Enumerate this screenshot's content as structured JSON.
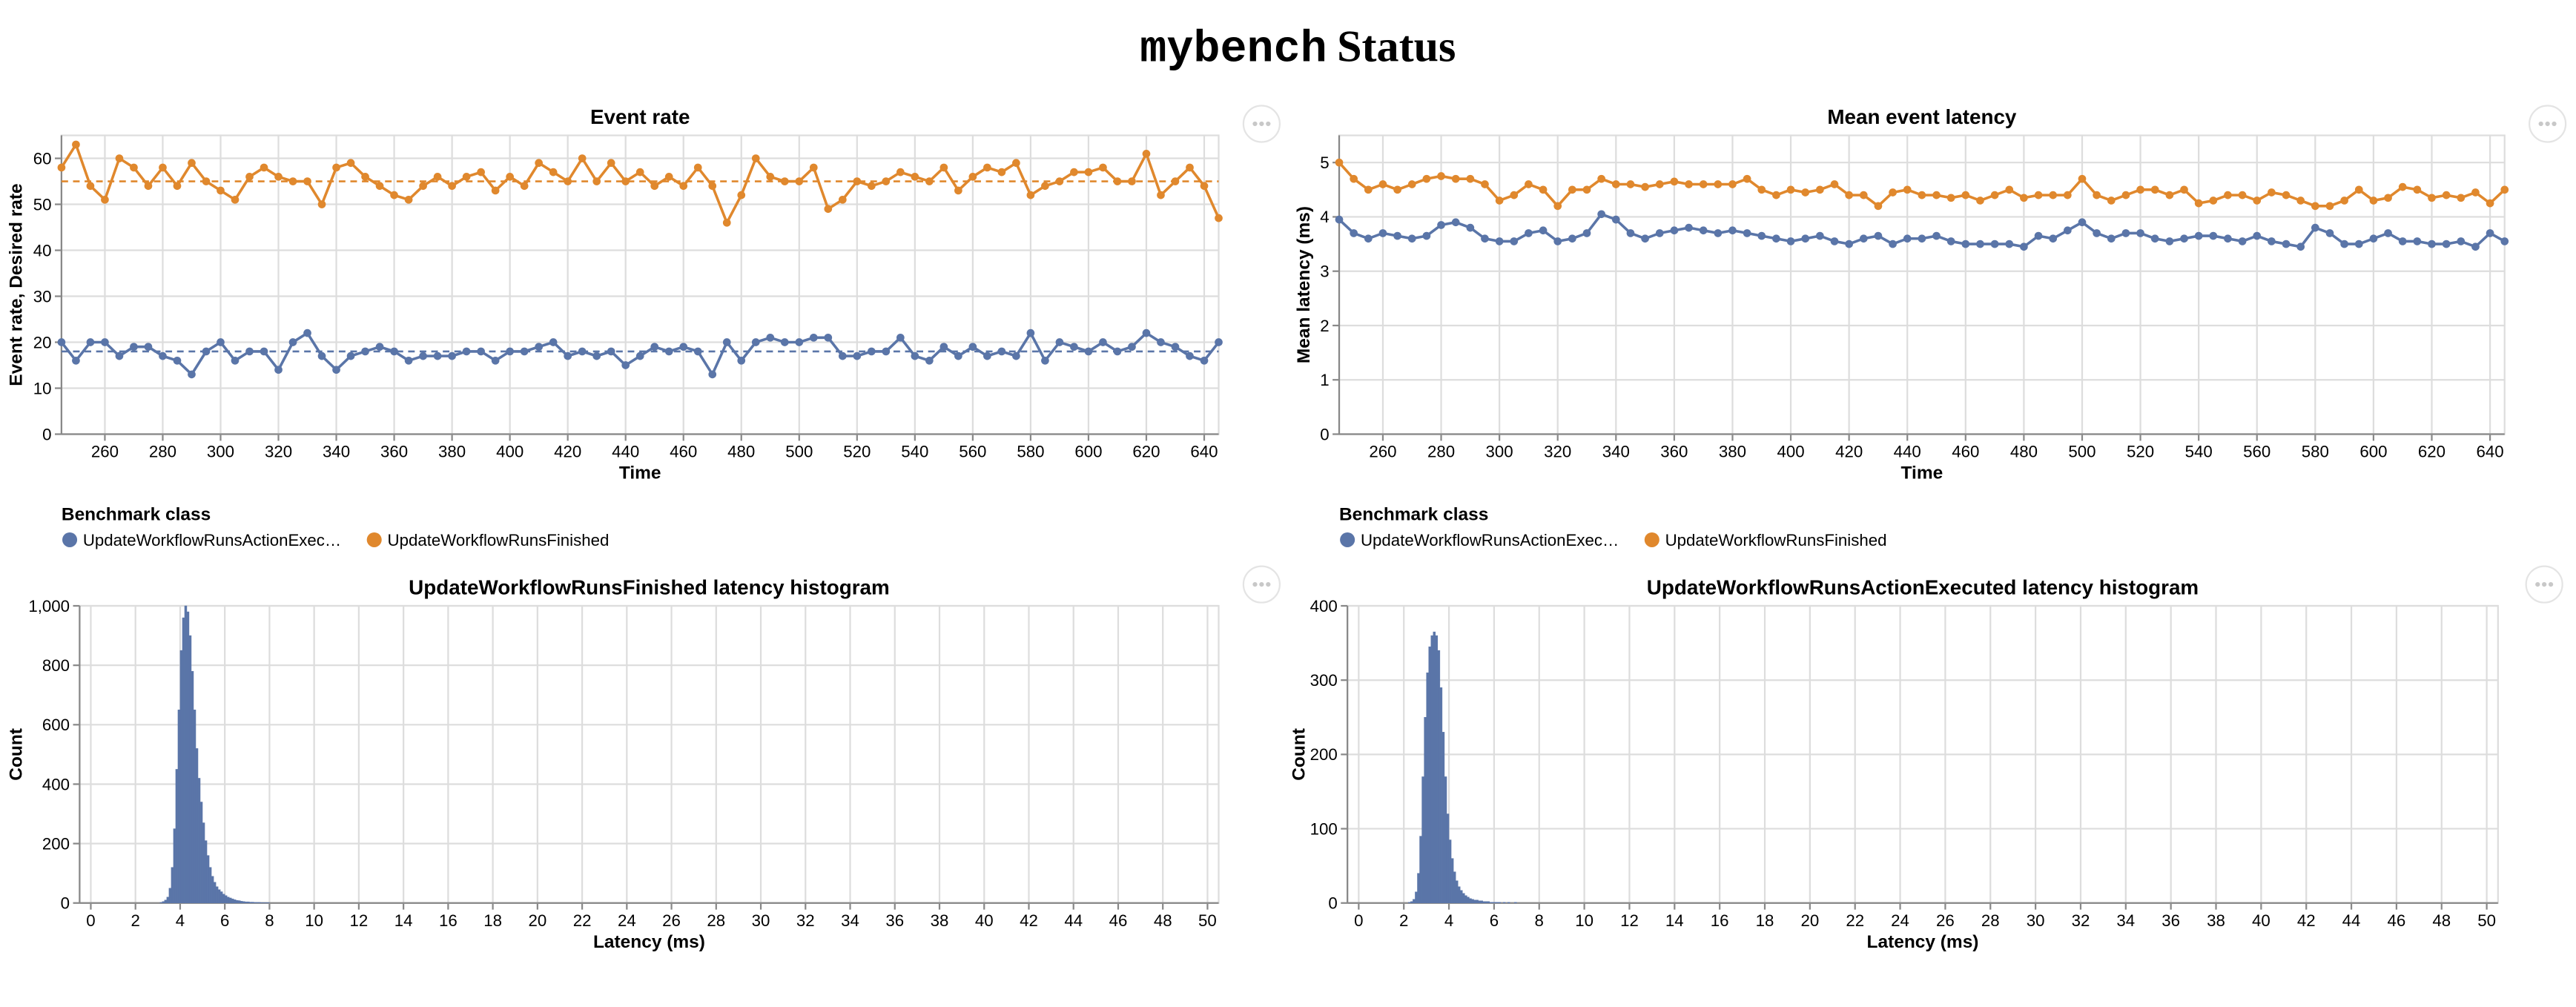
{
  "title_code": "mybench",
  "title_text": "Status",
  "chart_data": [
    {
      "type": "line",
      "title": "Event rate",
      "x_label": "Time",
      "y_label": "Event rate, Desired rate",
      "x": [
        245,
        250,
        255,
        260,
        265,
        270,
        275,
        280,
        285,
        290,
        295,
        300,
        305,
        310,
        315,
        320,
        325,
        330,
        335,
        340,
        345,
        350,
        355,
        360,
        365,
        370,
        375,
        380,
        385,
        390,
        395,
        400,
        405,
        410,
        415,
        420,
        425,
        430,
        435,
        440,
        445,
        450,
        455,
        460,
        465,
        470,
        475,
        480,
        485,
        490,
        495,
        500,
        505,
        510,
        515,
        520,
        525,
        530,
        535,
        540,
        545,
        550,
        555,
        560,
        565,
        570,
        575,
        580,
        585,
        590,
        595,
        600,
        605,
        610,
        615,
        620,
        625,
        630,
        635,
        640,
        645
      ],
      "xlim": [
        245,
        645
      ],
      "xticks": [
        260,
        280,
        300,
        320,
        340,
        360,
        380,
        400,
        420,
        440,
        460,
        480,
        500,
        520,
        540,
        560,
        580,
        600,
        620,
        640
      ],
      "ylim": [
        0,
        65
      ],
      "yticks": [
        0,
        10,
        20,
        30,
        40,
        50,
        60
      ],
      "grid": true,
      "legend_title": "Benchmark class",
      "series": [
        {
          "name": "UpdateWorkflowRunsActionExec…",
          "color": "#5a75a8",
          "desired": 18,
          "values": [
            20,
            16,
            20,
            20,
            17,
            19,
            19,
            17,
            16,
            13,
            18,
            20,
            16,
            18,
            18,
            14,
            20,
            22,
            17,
            14,
            17,
            18,
            19,
            18,
            16,
            17,
            17,
            17,
            18,
            18,
            16,
            18,
            18,
            19,
            20,
            17,
            18,
            17,
            18,
            15,
            17,
            19,
            18,
            19,
            18,
            13,
            20,
            16,
            20,
            21,
            20,
            20,
            21,
            21,
            17,
            17,
            18,
            18,
            21,
            17,
            16,
            19,
            17,
            19,
            17,
            18,
            17,
            22,
            16,
            20,
            19,
            18,
            20,
            18,
            19,
            22,
            20,
            19,
            17,
            16,
            20
          ]
        },
        {
          "name": "UpdateWorkflowRunsFinished",
          "color": "#e0882d",
          "desired": 55,
          "values": [
            58,
            63,
            54,
            51,
            60,
            58,
            54,
            58,
            54,
            59,
            55,
            53,
            51,
            56,
            58,
            56,
            55,
            55,
            50,
            58,
            59,
            56,
            54,
            52,
            51,
            54,
            56,
            54,
            56,
            57,
            53,
            56,
            54,
            59,
            57,
            55,
            60,
            55,
            59,
            55,
            57,
            54,
            56,
            54,
            58,
            54,
            46,
            52,
            60,
            56,
            55,
            55,
            58,
            49,
            51,
            55,
            54,
            55,
            57,
            56,
            55,
            58,
            53,
            56,
            58,
            57,
            59,
            52,
            54,
            55,
            57,
            57,
            58,
            55,
            55,
            61,
            52,
            55,
            58,
            54,
            47
          ]
        }
      ]
    },
    {
      "type": "line",
      "title": "Mean event latency",
      "x_label": "Time",
      "y_label": "Mean latency (ms)",
      "x": [
        245,
        250,
        255,
        260,
        265,
        270,
        275,
        280,
        285,
        290,
        295,
        300,
        305,
        310,
        315,
        320,
        325,
        330,
        335,
        340,
        345,
        350,
        355,
        360,
        365,
        370,
        375,
        380,
        385,
        390,
        395,
        400,
        405,
        410,
        415,
        420,
        425,
        430,
        435,
        440,
        445,
        450,
        455,
        460,
        465,
        470,
        475,
        480,
        485,
        490,
        495,
        500,
        505,
        510,
        515,
        520,
        525,
        530,
        535,
        540,
        545,
        550,
        555,
        560,
        565,
        570,
        575,
        580,
        585,
        590,
        595,
        600,
        605,
        610,
        615,
        620,
        625,
        630,
        635,
        640,
        645
      ],
      "xlim": [
        245,
        645
      ],
      "xticks": [
        260,
        280,
        300,
        320,
        340,
        360,
        380,
        400,
        420,
        440,
        460,
        480,
        500,
        520,
        540,
        560,
        580,
        600,
        620,
        640
      ],
      "ylim": [
        0,
        5.5
      ],
      "yticks": [
        0,
        1,
        2,
        3,
        4,
        5
      ],
      "grid": true,
      "legend_title": "Benchmark class",
      "series": [
        {
          "name": "UpdateWorkflowRunsActionExec…",
          "color": "#5a75a8",
          "values": [
            3.95,
            3.7,
            3.6,
            3.7,
            3.65,
            3.6,
            3.65,
            3.85,
            3.9,
            3.8,
            3.6,
            3.55,
            3.55,
            3.7,
            3.75,
            3.55,
            3.6,
            3.7,
            4.05,
            3.95,
            3.7,
            3.6,
            3.7,
            3.75,
            3.8,
            3.75,
            3.7,
            3.75,
            3.7,
            3.65,
            3.6,
            3.55,
            3.6,
            3.65,
            3.55,
            3.5,
            3.6,
            3.65,
            3.5,
            3.6,
            3.6,
            3.65,
            3.55,
            3.5,
            3.5,
            3.5,
            3.5,
            3.45,
            3.65,
            3.6,
            3.75,
            3.9,
            3.7,
            3.6,
            3.7,
            3.7,
            3.6,
            3.55,
            3.6,
            3.65,
            3.65,
            3.6,
            3.55,
            3.65,
            3.55,
            3.5,
            3.45,
            3.8,
            3.7,
            3.5,
            3.5,
            3.6,
            3.7,
            3.55,
            3.55,
            3.5,
            3.5,
            3.55,
            3.45,
            3.7,
            3.55
          ]
        },
        {
          "name": "UpdateWorkflowRunsFinished",
          "color": "#e0882d",
          "values": [
            5.0,
            4.7,
            4.5,
            4.6,
            4.5,
            4.6,
            4.7,
            4.75,
            4.7,
            4.7,
            4.6,
            4.3,
            4.4,
            4.6,
            4.5,
            4.2,
            4.5,
            4.5,
            4.7,
            4.6,
            4.6,
            4.55,
            4.6,
            4.65,
            4.6,
            4.6,
            4.6,
            4.6,
            4.7,
            4.5,
            4.4,
            4.5,
            4.45,
            4.5,
            4.6,
            4.4,
            4.4,
            4.2,
            4.45,
            4.5,
            4.4,
            4.4,
            4.35,
            4.4,
            4.3,
            4.4,
            4.5,
            4.35,
            4.4,
            4.4,
            4.4,
            4.7,
            4.4,
            4.3,
            4.4,
            4.5,
            4.5,
            4.4,
            4.5,
            4.25,
            4.3,
            4.4,
            4.4,
            4.3,
            4.45,
            4.4,
            4.3,
            4.2,
            4.2,
            4.3,
            4.5,
            4.3,
            4.35,
            4.55,
            4.5,
            4.35,
            4.4,
            4.35,
            4.45,
            4.25,
            4.5
          ]
        }
      ]
    },
    {
      "type": "histogram",
      "title": "UpdateWorkflowRunsFinished latency histogram",
      "x_label": "Latency (ms)",
      "y_label": "Count",
      "color": "#5a75a8",
      "bins": [
        3.0,
        3.1,
        3.2,
        3.3,
        3.4,
        3.5,
        3.6,
        3.7,
        3.8,
        3.9,
        4.0,
        4.1,
        4.2,
        4.3,
        4.4,
        4.5,
        4.6,
        4.7,
        4.8,
        4.9,
        5.0,
        5.1,
        5.2,
        5.3,
        5.4,
        5.5,
        5.6,
        5.7,
        5.8,
        5.9,
        6.0,
        6.1,
        6.2,
        6.3,
        6.4,
        6.5,
        6.6,
        6.7,
        6.8,
        6.9,
        7.0,
        7.1,
        7.2,
        7.3,
        7.4,
        7.5,
        7.6,
        7.7,
        7.8,
        7.9,
        8.0
      ],
      "counts": [
        0,
        2,
        5,
        10,
        20,
        50,
        120,
        250,
        450,
        650,
        850,
        960,
        1000,
        980,
        900,
        780,
        650,
        520,
        420,
        340,
        270,
        210,
        160,
        120,
        90,
        70,
        55,
        45,
        38,
        30,
        25,
        20,
        17,
        14,
        11,
        9,
        8,
        6,
        5,
        4,
        4,
        3,
        3,
        2,
        2,
        2,
        1,
        1,
        1,
        1
      ],
      "xlim": [
        -0.5,
        50.5
      ],
      "xticks": [
        0,
        2,
        4,
        6,
        8,
        10,
        12,
        14,
        16,
        18,
        20,
        22,
        24,
        26,
        28,
        30,
        32,
        34,
        36,
        38,
        40,
        42,
        44,
        46,
        48,
        50
      ],
      "ylim": [
        0,
        1000
      ],
      "yticks": [
        0,
        200,
        400,
        600,
        800,
        {
          "value": 1000,
          "label": "1,000"
        }
      ],
      "grid": true
    },
    {
      "type": "histogram",
      "title": "UpdateWorkflowRunsActionExecuted latency histogram",
      "x_label": "Latency (ms)",
      "y_label": "Count",
      "color": "#5a75a8",
      "bins": [
        2.0,
        2.1,
        2.2,
        2.3,
        2.4,
        2.5,
        2.6,
        2.7,
        2.8,
        2.9,
        3.0,
        3.1,
        3.2,
        3.3,
        3.4,
        3.5,
        3.6,
        3.7,
        3.8,
        3.9,
        4.0,
        4.1,
        4.2,
        4.3,
        4.4,
        4.5,
        4.6,
        4.7,
        4.8,
        4.9,
        5.0,
        5.1,
        5.2,
        5.3,
        5.4,
        5.5,
        5.6,
        5.7,
        5.8,
        5.9,
        6.0,
        6.1,
        6.2,
        6.3,
        6.4,
        6.5,
        6.6,
        6.7,
        6.8,
        6.9,
        7.0
      ],
      "counts": [
        0,
        0,
        1,
        2,
        5,
        15,
        40,
        90,
        170,
        250,
        310,
        345,
        360,
        365,
        360,
        340,
        290,
        230,
        170,
        120,
        85,
        60,
        42,
        30,
        22,
        17,
        13,
        10,
        8,
        6,
        5,
        4,
        4,
        3,
        3,
        2,
        2,
        2,
        1,
        1,
        1,
        1,
        1,
        0,
        1,
        0,
        1,
        0,
        0,
        1
      ],
      "xlim": [
        -0.5,
        50.5
      ],
      "xticks": [
        0,
        2,
        4,
        6,
        8,
        10,
        12,
        14,
        16,
        18,
        20,
        22,
        24,
        26,
        28,
        30,
        32,
        34,
        36,
        38,
        40,
        42,
        44,
        46,
        48,
        50
      ],
      "ylim": [
        0,
        400
      ],
      "yticks": [
        0,
        100,
        200,
        300,
        400
      ],
      "grid": true
    }
  ]
}
